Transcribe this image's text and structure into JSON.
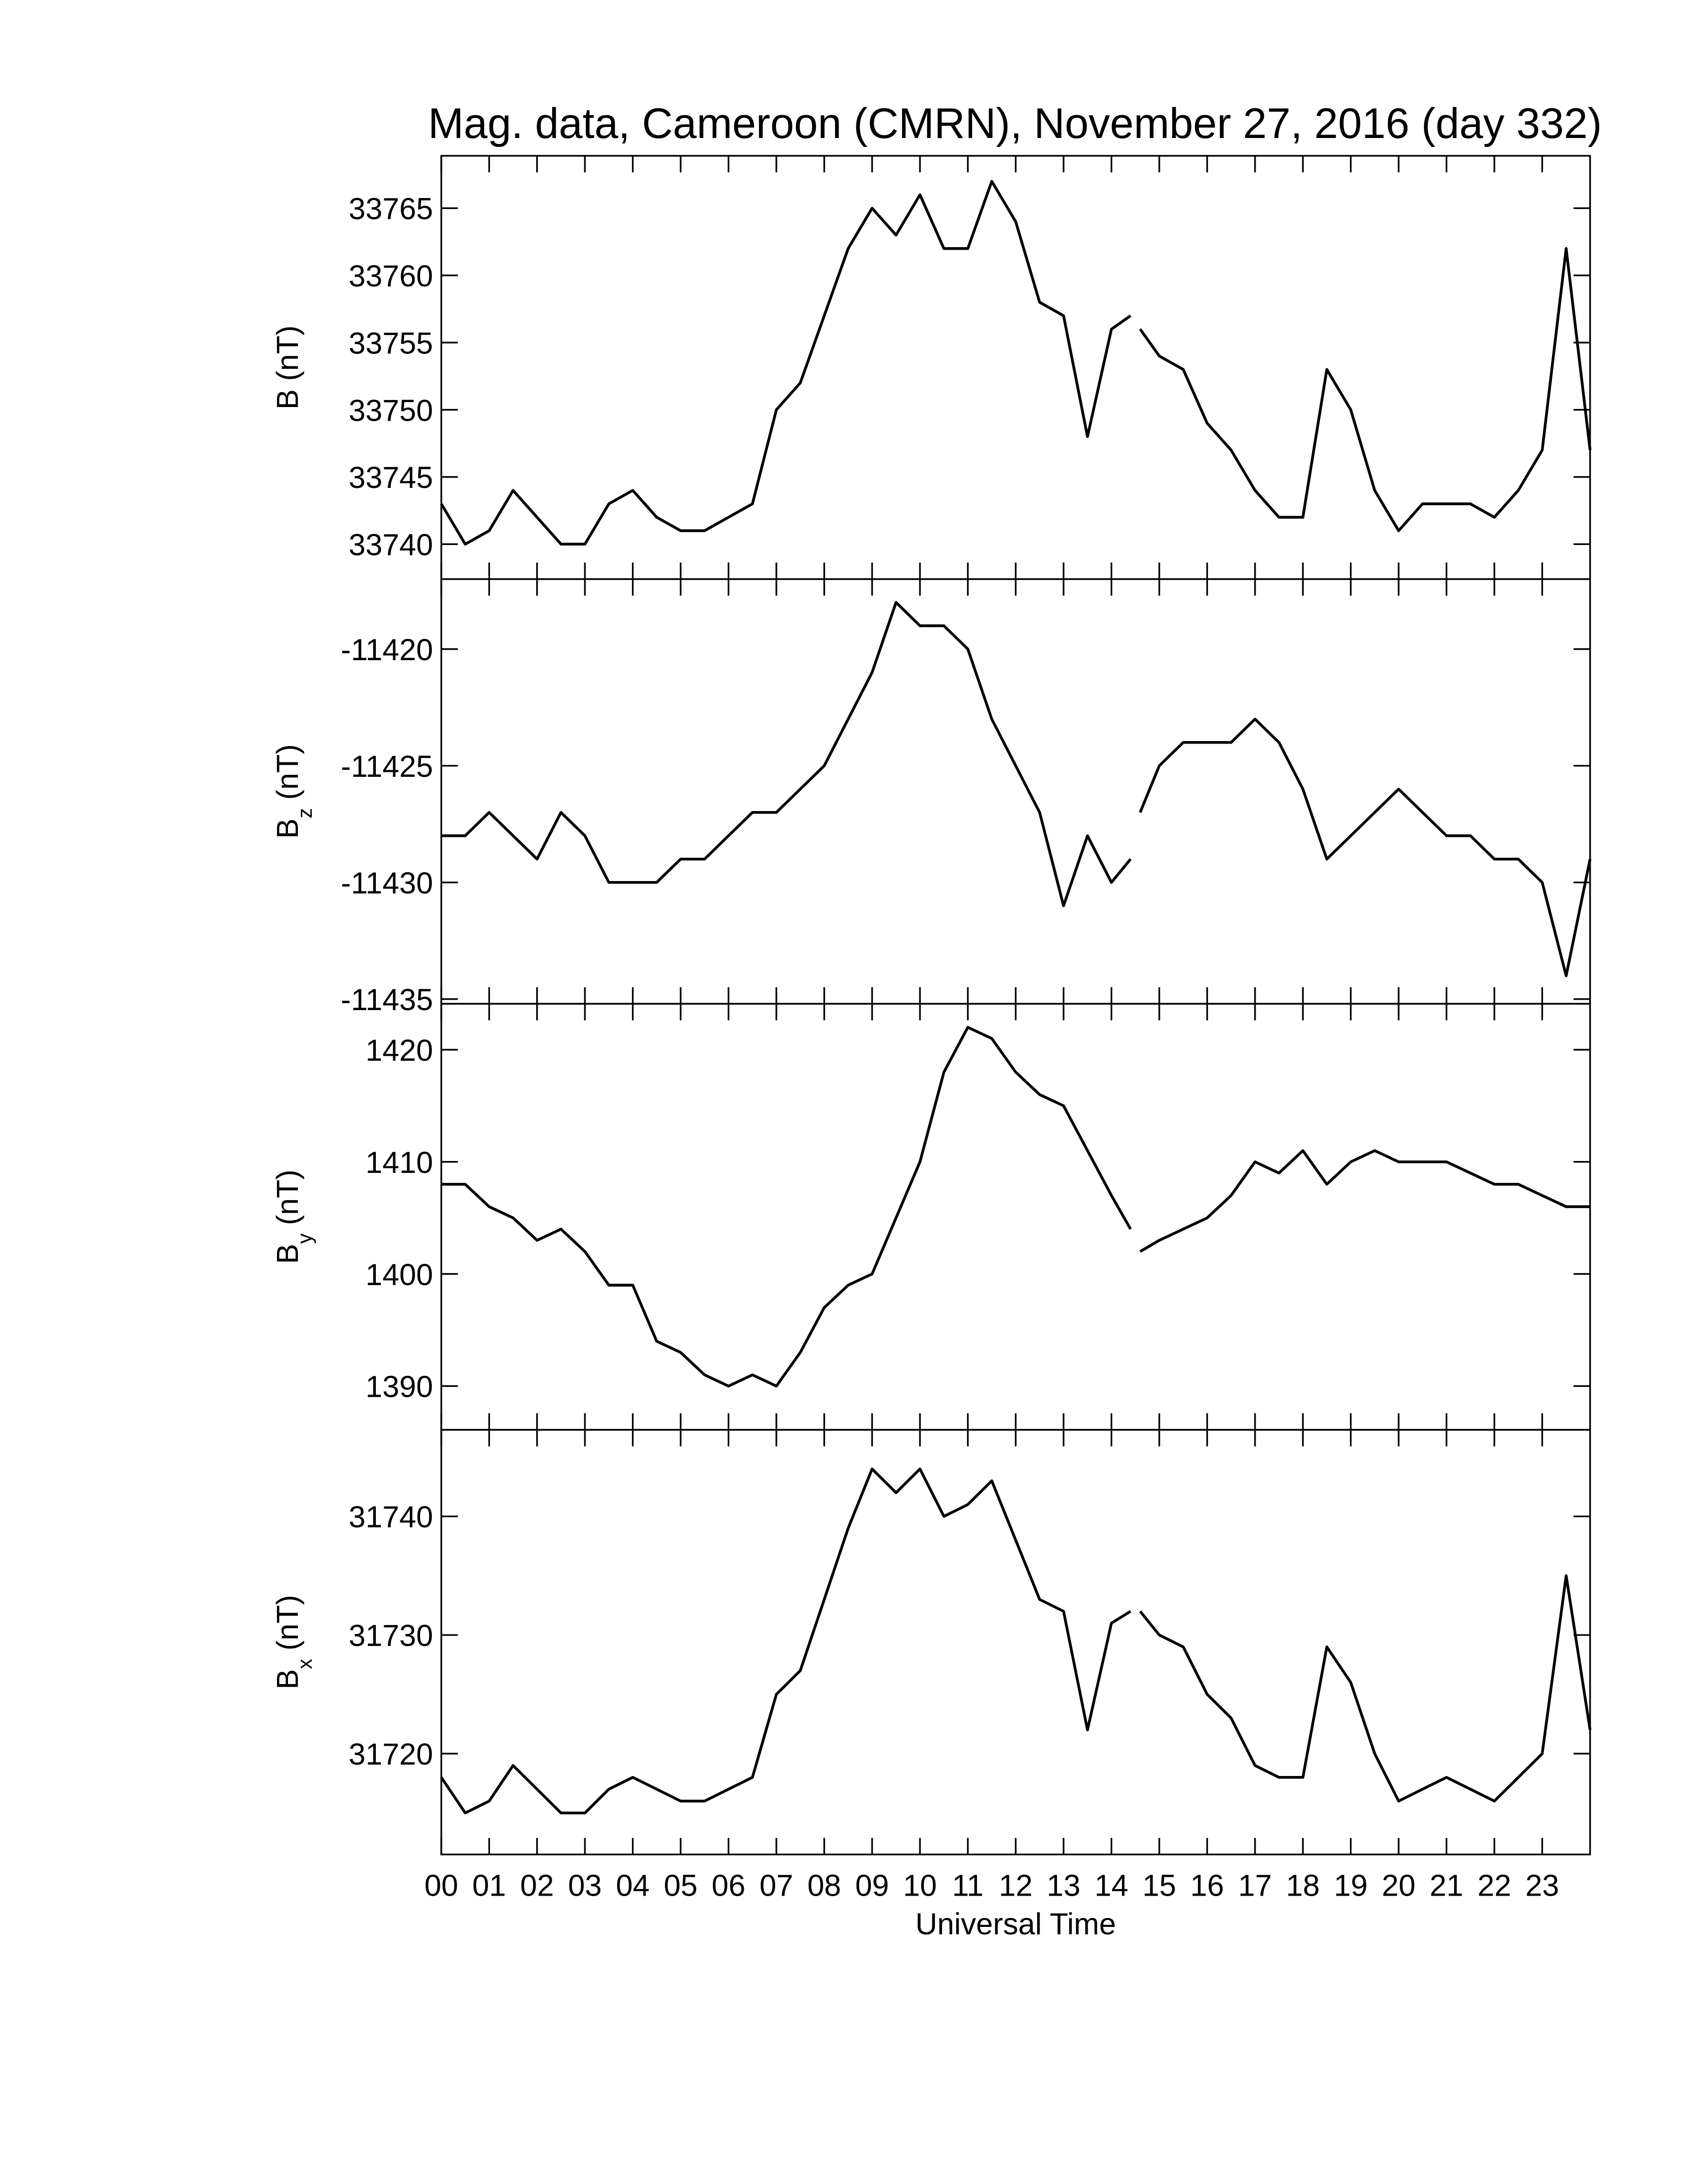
{
  "chart_data": [
    {
      "type": "line",
      "title": "Mag. data, Cameroon (CMRN), November 27, 2016 (day 332)",
      "ylabel": {
        "symbol": "B",
        "unit": "(nT)"
      },
      "color": "#000000",
      "xlim": [
        0,
        24
      ],
      "ylim": [
        33737.4,
        33768.9
      ],
      "yticks": [
        33740,
        33745,
        33750,
        33755,
        33760,
        33765
      ],
      "x": [
        0,
        0.5,
        1,
        1.5,
        2,
        2.5,
        3,
        3.5,
        4,
        4.5,
        5,
        5.5,
        6,
        6.5,
        7,
        7.5,
        8,
        8.5,
        9,
        9.5,
        10,
        10.5,
        11,
        11.5,
        12,
        12.5,
        13,
        13.5,
        14,
        14.4,
        14.5,
        14.6,
        15,
        15.5,
        16,
        16.5,
        17,
        17.5,
        18,
        18.5,
        19,
        19.5,
        20,
        20.5,
        21,
        21.5,
        22,
        22.5,
        23,
        23.5,
        24
      ],
      "values": [
        33743,
        33740,
        33741,
        33744,
        33742,
        33740,
        33740,
        33743,
        33744,
        33742,
        33741,
        33741,
        33742,
        33743,
        33750,
        33752,
        33757,
        33762,
        33765,
        33763,
        33766,
        33762,
        33762,
        33767,
        33764,
        33758,
        33757,
        33748,
        33756,
        33757,
        null,
        33756,
        33754,
        33753,
        33749,
        33747,
        33744,
        33742,
        33742,
        33753,
        33750,
        33744,
        33741,
        33743,
        33743,
        33743,
        33742,
        33744,
        33747,
        33762,
        33747
      ]
    },
    {
      "type": "line",
      "ylabel": {
        "symbol": "B",
        "subscript": "z",
        "unit": "(nT)"
      },
      "color": "#000000",
      "xlim": [
        0,
        24
      ],
      "ylim": [
        -11435.2,
        -11417
      ],
      "yticks": [
        -11435,
        -11430,
        -11425,
        -11420
      ],
      "x": [
        0,
        0.5,
        1,
        1.5,
        2,
        2.5,
        3,
        3.5,
        4,
        4.5,
        5,
        5.5,
        6,
        6.5,
        7,
        7.5,
        8,
        8.5,
        9,
        9.5,
        10,
        10.5,
        11,
        11.5,
        12,
        12.5,
        13,
        13.5,
        14,
        14.4,
        14.5,
        14.6,
        15,
        15.5,
        16,
        16.5,
        17,
        17.5,
        18,
        18.5,
        19,
        19.5,
        20,
        20.5,
        21,
        21.5,
        22,
        22.5,
        23,
        23.5,
        24
      ],
      "values": [
        -11428,
        -11428,
        -11427,
        -11428,
        -11429,
        -11427,
        -11428,
        -11430,
        -11430,
        -11430,
        -11429,
        -11429,
        -11428,
        -11427,
        -11427,
        -11426,
        -11425,
        -11423,
        -11421,
        -11418,
        -11419,
        -11419,
        -11420,
        -11423,
        -11425,
        -11427,
        -11431,
        -11428,
        -11430,
        -11429,
        null,
        -11427,
        -11425,
        -11424,
        -11424,
        -11424,
        -11423,
        -11424,
        -11426,
        -11429,
        -11428,
        -11427,
        -11426,
        -11427,
        -11428,
        -11428,
        -11429,
        -11429,
        -11430,
        -11434,
        -11429
      ]
    },
    {
      "type": "line",
      "ylabel": {
        "symbol": "B",
        "subscript": "y",
        "unit": "(nT)"
      },
      "color": "#000000",
      "xlim": [
        0,
        24
      ],
      "ylim": [
        1386.1,
        1424.1
      ],
      "yticks": [
        1390,
        1400,
        1410,
        1420
      ],
      "x": [
        0,
        0.5,
        1,
        1.5,
        2,
        2.5,
        3,
        3.5,
        4,
        4.5,
        5,
        5.5,
        6,
        6.5,
        7,
        7.5,
        8,
        8.5,
        9,
        9.5,
        10,
        10.5,
        11,
        11.5,
        12,
        12.5,
        13,
        13.5,
        14,
        14.4,
        14.5,
        14.6,
        15,
        15.5,
        16,
        16.5,
        17,
        17.5,
        18,
        18.5,
        19,
        19.5,
        20,
        20.5,
        21,
        21.5,
        22,
        22.5,
        23,
        23.5,
        24
      ],
      "values": [
        1408,
        1408,
        1406,
        1405,
        1403,
        1404,
        1402,
        1399,
        1399,
        1394,
        1393,
        1391,
        1390,
        1391,
        1390,
        1393,
        1397,
        1399,
        1400,
        1405,
        1410,
        1418,
        1422,
        1421,
        1418,
        1416,
        1415,
        1411,
        1407,
        1404,
        null,
        1402,
        1403,
        1404,
        1405,
        1407,
        1410,
        1409,
        1411,
        1408,
        1410,
        1411,
        1410,
        1410,
        1410,
        1409,
        1408,
        1408,
        1407,
        1406,
        1406
      ]
    },
    {
      "type": "line",
      "ylabel": {
        "symbol": "B",
        "subscript": "x",
        "unit": "(nT)"
      },
      "xlabel": "Universal Time",
      "color": "#000000",
      "xlim": [
        0,
        24
      ],
      "ylim": [
        31711.5,
        31747.3
      ],
      "yticks": [
        31720,
        31730,
        31740
      ],
      "xticks": [
        {
          "value": 0,
          "label": "00"
        },
        {
          "value": 1,
          "label": "01"
        },
        {
          "value": 2,
          "label": "02"
        },
        {
          "value": 3,
          "label": "03"
        },
        {
          "value": 4,
          "label": "04"
        },
        {
          "value": 5,
          "label": "05"
        },
        {
          "value": 6,
          "label": "06"
        },
        {
          "value": 7,
          "label": "07"
        },
        {
          "value": 8,
          "label": "08"
        },
        {
          "value": 9,
          "label": "09"
        },
        10,
        11,
        12,
        13,
        14,
        15,
        16,
        17,
        18,
        19,
        20,
        21,
        22,
        23
      ],
      "x": [
        0,
        0.5,
        1,
        1.5,
        2,
        2.5,
        3,
        3.5,
        4,
        4.5,
        5,
        5.5,
        6,
        6.5,
        7,
        7.5,
        8,
        8.5,
        9,
        9.5,
        10,
        10.5,
        11,
        11.5,
        12,
        12.5,
        13,
        13.5,
        14,
        14.4,
        14.5,
        14.6,
        15,
        15.5,
        16,
        16.5,
        17,
        17.5,
        18,
        18.5,
        19,
        19.5,
        20,
        20.5,
        21,
        21.5,
        22,
        22.5,
        23,
        23.5,
        24
      ],
      "values": [
        31718,
        31715,
        31716,
        31719,
        31717,
        31715,
        31715,
        31717,
        31718,
        31717,
        31716,
        31716,
        31717,
        31718,
        31725,
        31727,
        31733,
        31739,
        31744,
        31742,
        31744,
        31740,
        31741,
        31743,
        31738,
        31733,
        31732,
        31722,
        31731,
        31732,
        null,
        31732,
        31730,
        31729,
        31725,
        31723,
        31719,
        31718,
        31718,
        31729,
        31726,
        31720,
        31716,
        31717,
        31718,
        31717,
        31716,
        31718,
        31720,
        31735,
        31722
      ]
    }
  ]
}
